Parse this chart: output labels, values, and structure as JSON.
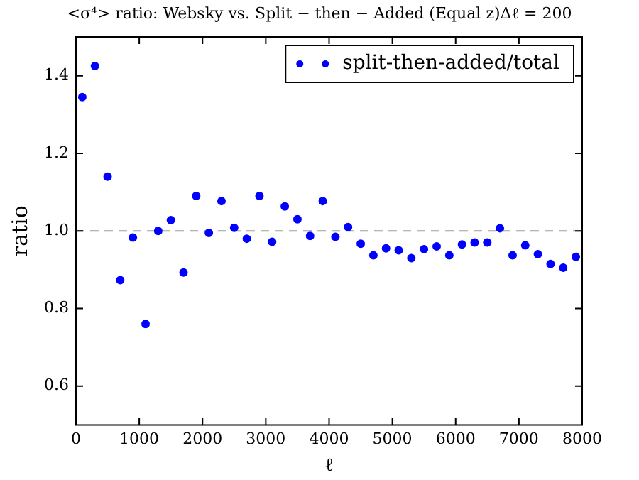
{
  "chart_data": {
    "type": "scatter",
    "title": "<σ⁴> ratio: Websky vs. Split − then − Added (Equal z)Δℓ = 200",
    "xlabel": "ℓ",
    "ylabel": "ratio",
    "x": [
      100,
      300,
      500,
      700,
      900,
      1100,
      1300,
      1500,
      1700,
      1900,
      2100,
      2300,
      2500,
      2700,
      2900,
      3100,
      3300,
      3500,
      3700,
      3900,
      4100,
      4300,
      4500,
      4700,
      4900,
      5100,
      5300,
      5500,
      5700,
      5900,
      6100,
      6300,
      6500,
      6700,
      6900,
      7100,
      7300,
      7500,
      7700,
      7900
    ],
    "series": [
      {
        "name": "split-then-added/total",
        "color": "#0000ff",
        "values": [
          1.345,
          1.425,
          1.14,
          0.873,
          0.983,
          0.76,
          1.0,
          1.028,
          0.893,
          1.09,
          0.995,
          1.077,
          1.008,
          0.98,
          1.09,
          0.972,
          1.063,
          1.03,
          0.987,
          1.077,
          0.985,
          1.01,
          0.967,
          0.937,
          0.955,
          0.95,
          0.93,
          0.953,
          0.96,
          0.937,
          0.965,
          0.97,
          0.97,
          1.007,
          0.937,
          0.963,
          0.94,
          0.915,
          0.905,
          0.933
        ]
      }
    ],
    "xlim": [
      0,
      8000
    ],
    "xticks": [
      0,
      1000,
      2000,
      3000,
      4000,
      5000,
      6000,
      7000,
      8000
    ],
    "ylim": [
      0.5,
      1.5
    ],
    "yticks": [
      {
        "value": 0.6,
        "label": "0.6"
      },
      {
        "value": 0.8,
        "label": "0.8"
      },
      {
        "value": 1,
        "label": "1.0"
      },
      {
        "value": 1.2,
        "label": "1.2"
      },
      {
        "value": 1.4,
        "label": "1.4"
      }
    ],
    "ref_lines": [
      {
        "axis": "y",
        "value": 1,
        "color": "#a0a0a0",
        "line_style": "dashed"
      }
    ],
    "legend": "top right",
    "marker": "circle",
    "grid": false
  }
}
